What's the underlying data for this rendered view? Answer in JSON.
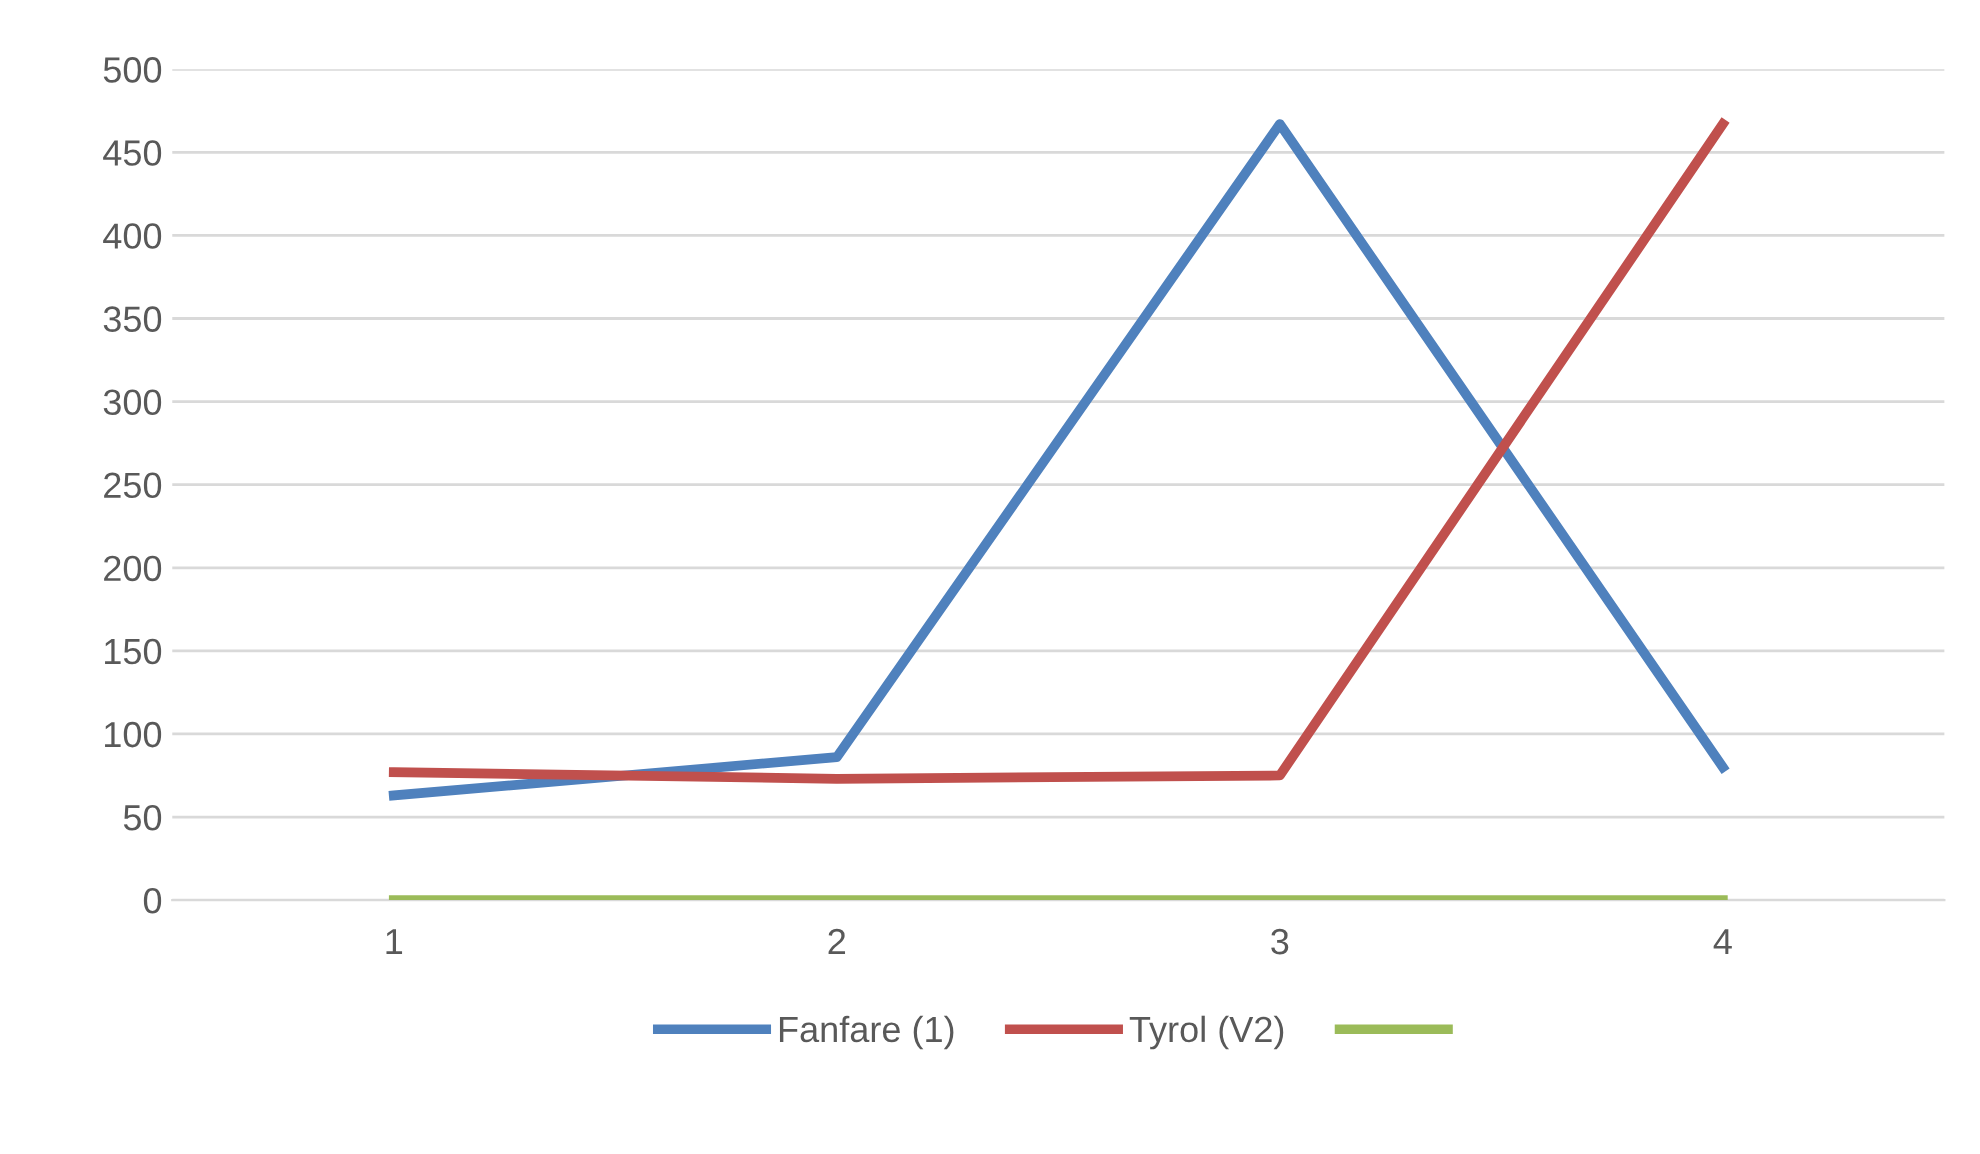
{
  "chart_data": {
    "type": "line",
    "categories": [
      "1",
      "2",
      "3",
      "4"
    ],
    "series": [
      {
        "name": "Fanfare (1)",
        "color": "#4f81bd",
        "values": [
          63,
          86,
          467,
          80
        ]
      },
      {
        "name": "Tyrol (V2)",
        "color": "#c0504d",
        "values": [
          77,
          73,
          75,
          467
        ]
      },
      {
        "color": "#9bbb59",
        "values": [
          0,
          0,
          0,
          0
        ]
      }
    ],
    "ylim": [
      0,
      500
    ],
    "yticks": [
      0,
      50,
      100,
      150,
      200,
      250,
      300,
      350,
      400,
      450,
      500
    ],
    "grid": "y",
    "legend": "bottom",
    "marker": "none",
    "line_style": "solid"
  }
}
